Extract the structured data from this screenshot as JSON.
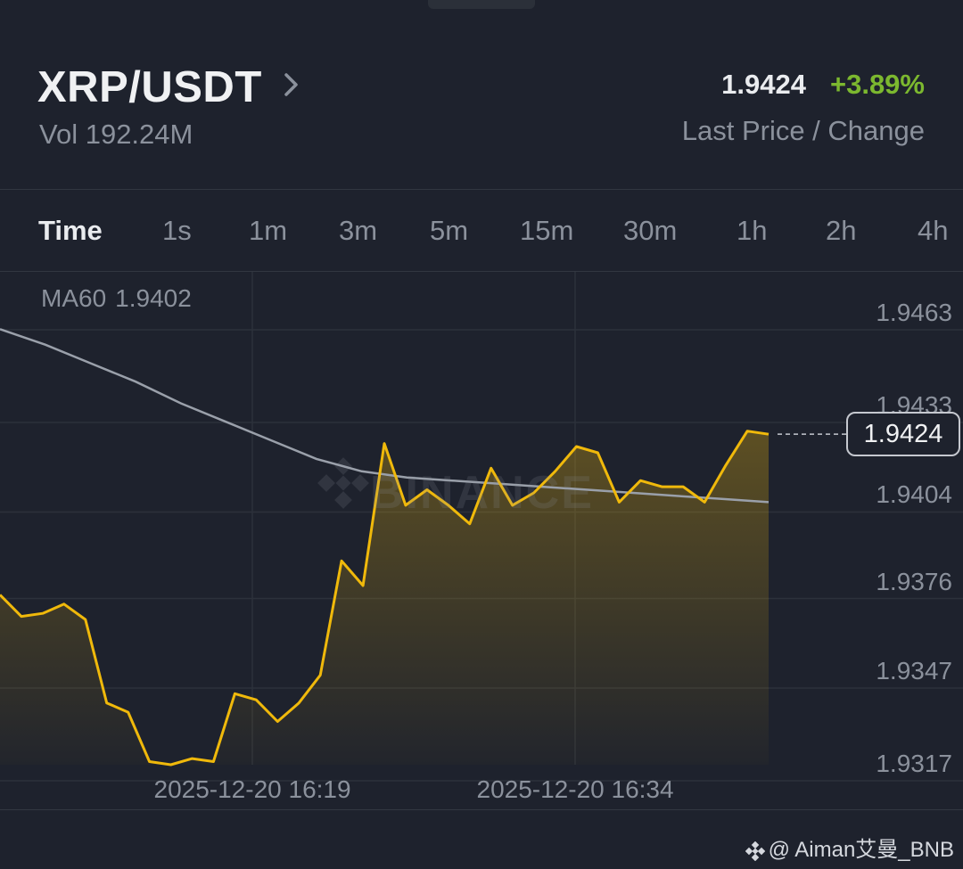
{
  "header": {
    "pair": "XRP/USDT",
    "volume": "Vol 192.24M",
    "last_price": "1.9424",
    "change": "+3.89%",
    "price_caption": "Last Price / Change"
  },
  "tabs": [
    {
      "label": "Time",
      "active": true
    },
    {
      "label": "1s"
    },
    {
      "label": "1m"
    },
    {
      "label": "3m"
    },
    {
      "label": "5m"
    },
    {
      "label": "15m"
    },
    {
      "label": "30m"
    },
    {
      "label": "1h"
    },
    {
      "label": "2h"
    },
    {
      "label": "4h"
    }
  ],
  "chart": {
    "ma_name": "MA60",
    "ma_value": "1.9402",
    "current_price_tag": "1.9424",
    "watermark": "BINANCE",
    "colors": {
      "price_line": "#f0b90b",
      "ma_line": "#9aa0aa",
      "change_positive": "#7cb82f"
    }
  },
  "chart_data": {
    "type": "line",
    "title": "",
    "xlabel": "",
    "ylabel": "",
    "y_ticks": [
      "1.9463",
      "1.9433",
      "1.9404",
      "1.9376",
      "1.9347",
      "1.9317"
    ],
    "x_ticks": [
      "2025-12-20 16:19",
      "2025-12-20 16:34"
    ],
    "ylim": [
      1.9317,
      1.9463
    ],
    "grid": true,
    "series": [
      {
        "name": "",
        "style": "area",
        "values": [
          1.9372,
          1.9365,
          1.9366,
          1.9369,
          1.9364,
          1.9337,
          1.9334,
          1.9318,
          1.9317,
          1.9319,
          1.9318,
          1.934,
          1.9338,
          1.9331,
          1.9337,
          1.9346,
          1.9383,
          1.9375,
          1.9421,
          1.9401,
          1.9406,
          1.9401,
          1.9395,
          1.9413,
          1.9401,
          1.9405,
          1.9412,
          1.942,
          1.9418,
          1.9402,
          1.9409,
          1.9407,
          1.9407,
          1.9402,
          1.9414,
          1.9425,
          1.9424
        ]
      },
      {
        "name": "MA60",
        "style": "line",
        "values": [
          1.9458,
          1.9453,
          1.9447,
          1.9441,
          1.9434,
          1.9428,
          1.9422,
          1.9416,
          1.9412,
          1.941,
          1.9409,
          1.9408,
          1.9407,
          1.9406,
          1.9405,
          1.9404,
          1.9403,
          1.9402
        ]
      }
    ]
  },
  "credit": "@ Aiman艾曼_BNB"
}
